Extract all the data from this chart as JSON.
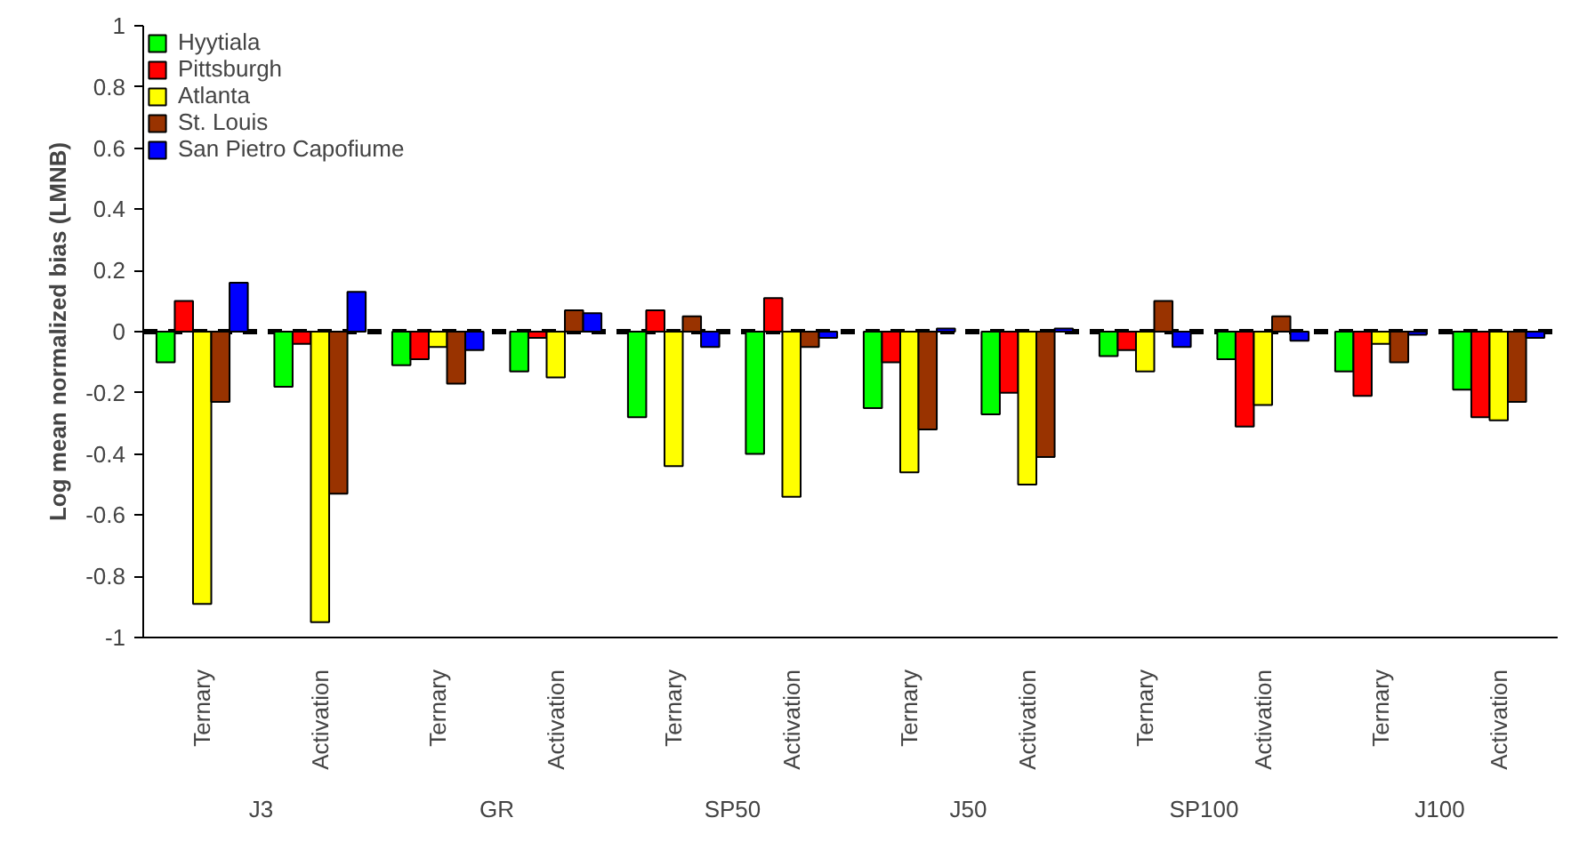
{
  "chart_data": {
    "type": "bar",
    "ylabel": "Log mean normalized bias (LMNB)",
    "categories": [
      "Ternary",
      "Activation",
      "Ternary",
      "Activation",
      "Ternary",
      "Activation",
      "Ternary",
      "Activation",
      "Ternary",
      "Activation",
      "Ternary",
      "Activation"
    ],
    "annotations": [
      "J3",
      "GR",
      "SP50",
      "J50",
      "SP100",
      "J100"
    ],
    "series": [
      {
        "name": "Hyytiala",
        "color": "#00ff00",
        "values": [
          -0.1,
          -0.18,
          -0.11,
          -0.13,
          -0.28,
          -0.4,
          -0.25,
          -0.27,
          -0.08,
          -0.09,
          -0.13,
          -0.19
        ]
      },
      {
        "name": "Pittsburgh",
        "color": "#ff0000",
        "values": [
          0.1,
          -0.04,
          -0.09,
          -0.02,
          0.07,
          0.11,
          -0.1,
          -0.2,
          -0.06,
          -0.31,
          -0.21,
          -0.28
        ]
      },
      {
        "name": "Atlanta",
        "color": "#ffff00",
        "values": [
          -0.89,
          -0.95,
          -0.05,
          -0.15,
          -0.44,
          -0.54,
          -0.46,
          -0.5,
          -0.13,
          -0.24,
          -0.04,
          -0.29
        ]
      },
      {
        "name": "St. Louis",
        "color": "#993300",
        "values": [
          -0.23,
          -0.53,
          -0.17,
          0.07,
          0.05,
          -0.05,
          -0.32,
          -0.41,
          0.1,
          0.05,
          -0.1,
          -0.23
        ]
      },
      {
        "name": "San Pietro Capofiume",
        "color": "#0000ff",
        "values": [
          0.16,
          0.13,
          -0.06,
          0.06,
          -0.05,
          -0.02,
          0.01,
          0.01,
          -0.05,
          -0.03,
          -0.01,
          -0.02
        ]
      }
    ],
    "ylim": [
      -1,
      1
    ],
    "yticks": [
      -1,
      -0.8,
      -0.6,
      -0.4,
      -0.2,
      0,
      0.2,
      0.4,
      0.6,
      0.8,
      1
    ],
    "ref_lines": [
      {
        "axis": "y",
        "value": 0,
        "color": "#000000",
        "line_style": "dashed"
      }
    ],
    "grid": false,
    "legend": "top left"
  }
}
